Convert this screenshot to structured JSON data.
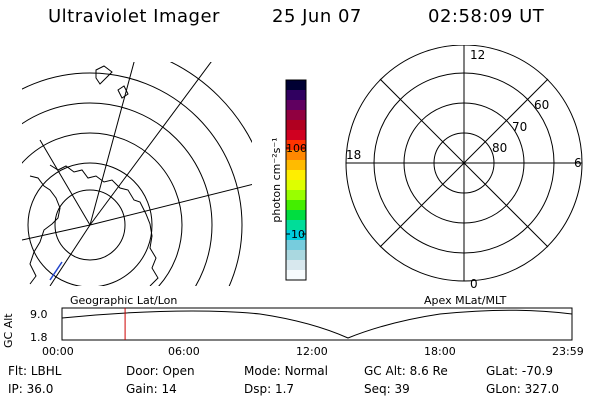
{
  "header": {
    "instrument": "Ultraviolet Imager",
    "date": "25 Jun 07",
    "time": "02:58:09 UT"
  },
  "colorbar": {
    "unit_label": "photon cm⁻²s⁻¹",
    "ticks": [
      "100",
      "10"
    ],
    "colors": [
      "#000033",
      "#300060",
      "#600060",
      "#900040",
      "#b00020",
      "#d00020",
      "#ff3300",
      "#ff8800",
      "#ffbb00",
      "#ffee00",
      "#ddff00",
      "#99ff00",
      "#44ee00",
      "#00dd40",
      "#00dd99",
      "#00ccdd",
      "#77ccdd",
      "#aad8e0",
      "#d8e8ee",
      "#f6fbfd"
    ]
  },
  "polar_plot": {
    "mlt_labels": {
      "top": "12",
      "left": "18",
      "right": "6",
      "bottom": "0"
    },
    "lat_labels": [
      "60",
      "70",
      "80"
    ]
  },
  "timeline": {
    "left_title": "Geographic Lat/Lon",
    "right_title": "Apex MLat/MLT",
    "axis_label": "GC Alt",
    "y_labels": [
      "9.0",
      "1.8"
    ],
    "x_labels": [
      "00:00",
      "06:00",
      "12:00",
      "18:00",
      "23:59"
    ],
    "marker_time": "02:58",
    "marker_color": "#cc0000"
  },
  "info": {
    "row1": [
      {
        "label": "Flt:",
        "value": "LBHL"
      },
      {
        "label": "Door:",
        "value": "Open"
      },
      {
        "label": "Mode:",
        "value": "Normal"
      },
      {
        "label": "GC Alt:",
        "value": "8.6 Re"
      },
      {
        "label": "GLat:",
        "value": "-70.9"
      }
    ],
    "row2": [
      {
        "label": "IP:",
        "value": "36.0"
      },
      {
        "label": "Gain:",
        "value": "14"
      },
      {
        "label": "Dsp:",
        "value": "1.7"
      },
      {
        "label": "Seq:",
        "value": "39"
      },
      {
        "label": "GLon:",
        "value": "327.0"
      }
    ]
  }
}
